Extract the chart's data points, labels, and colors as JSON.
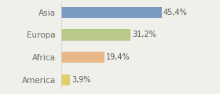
{
  "categories": [
    "America",
    "Africa",
    "Europa",
    "Asia"
  ],
  "values": [
    3.9,
    19.4,
    31.2,
    45.4
  ],
  "labels": [
    "3,9%",
    "19,4%",
    "31,2%",
    "45,4%"
  ],
  "bar_colors": [
    "#ddd06a",
    "#e8b888",
    "#b8c98a",
    "#7a9cc0"
  ],
  "background_color": "#f0f0eb",
  "xlim": [
    0,
    60
  ],
  "label_fontsize": 7.0,
  "tick_fontsize": 7.5,
  "bar_height": 0.5
}
